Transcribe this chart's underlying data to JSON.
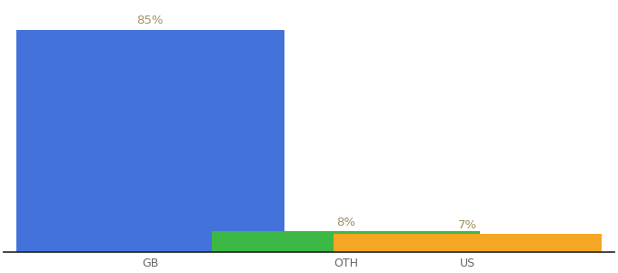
{
  "categories": [
    "GB",
    "OTH",
    "US"
  ],
  "values": [
    85,
    8,
    7
  ],
  "bar_colors": [
    "#4472db",
    "#3cb844",
    "#f5a623"
  ],
  "label_color": "#a09060",
  "value_labels": [
    "85%",
    "8%",
    "7%"
  ],
  "background_color": "#ffffff",
  "ylim": [
    0,
    95
  ],
  "bar_width": 0.55,
  "x_positions": [
    0.15,
    0.55,
    0.8
  ],
  "label_fontsize": 9.5,
  "tick_fontsize": 9,
  "spine_color": "#222222",
  "fig_width": 6.8,
  "fig_height": 3.0,
  "dpi": 100
}
